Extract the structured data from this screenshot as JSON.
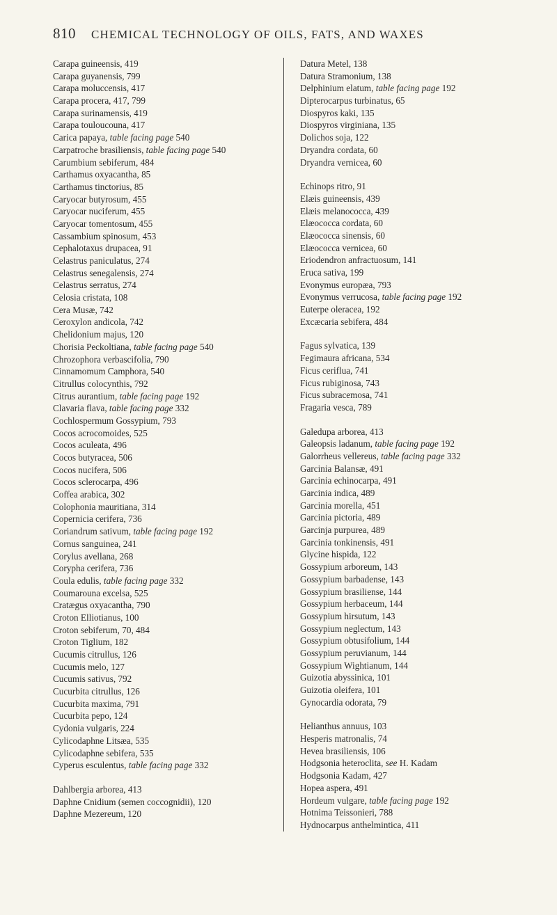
{
  "page": {
    "number": "810",
    "title": "CHEMICAL TECHNOLOGY OF OILS, FATS, AND WAXES"
  },
  "left": [
    {
      "t": "Carapa guineensis, 419"
    },
    {
      "t": "Carapa guyanensis, 799"
    },
    {
      "t": "Carapa moluccensis, 417"
    },
    {
      "t": "Carapa procera, 417, 799"
    },
    {
      "t": "Carapa surinamensis, 419"
    },
    {
      "t": "Carapa touloucouna, 417"
    },
    {
      "t": "Carica papaya, ",
      "i": "table facing page",
      "a": " 540"
    },
    {
      "t": "Carpatroche brasiliensis, ",
      "i": "table facing page",
      "a": " 540"
    },
    {
      "t": "Carumbium sebiferum, 484"
    },
    {
      "t": "Carthamus oxyacantha, 85"
    },
    {
      "t": "Carthamus tinctorius, 85"
    },
    {
      "t": "Caryocar butyrosum, 455"
    },
    {
      "t": "Caryocar nuciferum, 455"
    },
    {
      "t": "Caryocar tomentosum, 455"
    },
    {
      "t": "Cassambium spinosum, 453"
    },
    {
      "t": "Cephalotaxus drupacea, 91"
    },
    {
      "t": "Celastrus paniculatus, 274"
    },
    {
      "t": "Celastrus senegalensis, 274"
    },
    {
      "t": "Celastrus serratus, 274"
    },
    {
      "t": "Celosia cristata, 108"
    },
    {
      "t": "Cera Musæ, 742"
    },
    {
      "t": "Ceroxylon andicola, 742"
    },
    {
      "t": "Chelidonium majus, 120"
    },
    {
      "t": "Chorisia Peckoltiana, ",
      "i": "table facing page",
      "a": " 540"
    },
    {
      "t": "Chrozophora verbascifolia, 790"
    },
    {
      "t": "Cinnamomum Camphora, 540"
    },
    {
      "t": "Citrullus colocynthis, 792"
    },
    {
      "t": "Citrus aurantium, ",
      "i": "table facing page",
      "a": " 192"
    },
    {
      "t": "Clavaria flava, ",
      "i": "table facing page",
      "a": " 332"
    },
    {
      "t": "Cochlospermum Gossypium, 793"
    },
    {
      "t": "Cocos acrocomoides, 525"
    },
    {
      "t": "Cocos aculeata, 496"
    },
    {
      "t": "Cocos butyracea, 506"
    },
    {
      "t": "Cocos nucifera, 506"
    },
    {
      "t": "Cocos sclerocarpa, 496"
    },
    {
      "t": "Coffea arabica, 302"
    },
    {
      "t": "Colophonia mauritiana, 314"
    },
    {
      "t": "Copernicia cerifera, 736"
    },
    {
      "t": "Coriandrum sativum, ",
      "i": "table facing page",
      "a": " 192"
    },
    {
      "t": "Cornus sanguinea, 241"
    },
    {
      "t": "Corylus avellana, 268"
    },
    {
      "t": "Corypha cerifera, 736"
    },
    {
      "t": "Coula edulis, ",
      "i": "table facing page",
      "a": " 332"
    },
    {
      "t": "Coumarouna excelsa, 525"
    },
    {
      "t": "Cratægus oxyacantha, 790"
    },
    {
      "t": "Croton Elliotianus, 100"
    },
    {
      "t": "Croton sebiferum, 70, 484"
    },
    {
      "t": "Croton Tiglium, 182"
    },
    {
      "t": "Cucumis citrullus, 126"
    },
    {
      "t": "Cucumis melo, 127"
    },
    {
      "t": "Cucumis sativus, 792"
    },
    {
      "t": "Cucurbita citrullus, 126"
    },
    {
      "t": "Cucurbita maxima, 791"
    },
    {
      "t": "Cucurbita pepo, 124"
    },
    {
      "t": "Cydonia vulgaris, 224"
    },
    {
      "t": "Cylicodaphne Litsæa, 535"
    },
    {
      "t": "Cylicodaphne sebifera, 535"
    },
    {
      "t": "Cyperus esculentus, ",
      "i": "table facing page",
      "a": " 332"
    },
    {
      "sp": true
    },
    {
      "t": "Dahlbergia arborea, 413"
    },
    {
      "t": "Daphne Cnidium (semen coccognidii), 120"
    },
    {
      "t": "Daphne Mezereum, 120"
    }
  ],
  "right": [
    {
      "t": "Datura Metel, 138"
    },
    {
      "t": "Datura Stramonium, 138"
    },
    {
      "t": "Delphinium elatum, ",
      "i": "table facing page",
      "a": " 192"
    },
    {
      "t": "Dipterocarpus turbinatus, 65"
    },
    {
      "t": "Diospyros kaki, 135"
    },
    {
      "t": "Diospyros virginiana, 135"
    },
    {
      "t": "Dolichos soja, 122"
    },
    {
      "t": "Dryandra cordata, 60"
    },
    {
      "t": "Dryandra vernicea, 60"
    },
    {
      "sp": true
    },
    {
      "t": "Echinops ritro, 91"
    },
    {
      "t": "Elæis guineensis, 439"
    },
    {
      "t": "Elæis melanococca, 439"
    },
    {
      "t": "Elæococca cordata, 60"
    },
    {
      "t": "Elæococca sinensis, 60"
    },
    {
      "t": "Elæococca vernicea, 60"
    },
    {
      "t": "Eriodendron anfractuosum, 141"
    },
    {
      "t": "Eruca sativa, 199"
    },
    {
      "t": "Evonymus europæa, 793"
    },
    {
      "t": "Evonymus verrucosa, ",
      "i": "table facing page",
      "a": " 192"
    },
    {
      "t": "Euterpe oleracea, 192"
    },
    {
      "t": "Excæcaria sebifera, 484"
    },
    {
      "sp": true
    },
    {
      "t": "Fagus sylvatica, 139"
    },
    {
      "t": "Fegimaura africana, 534"
    },
    {
      "t": "Ficus ceriflua, 741"
    },
    {
      "t": "Ficus rubiginosa, 743"
    },
    {
      "t": "Ficus subracemosa, 741"
    },
    {
      "t": "Fragaria vesca, 789"
    },
    {
      "sp": true
    },
    {
      "t": "Galedupa arborea, 413"
    },
    {
      "t": "Galeopsis ladanum, ",
      "i": "table facing page",
      "a": " 192"
    },
    {
      "t": "Galorrheus vellereus, ",
      "i": "table facing page",
      "a": " 332"
    },
    {
      "t": "Garcinia Balansæ, 491"
    },
    {
      "t": "Garcinia echinocarpa, 491"
    },
    {
      "t": "Garcinia indica, 489"
    },
    {
      "t": "Garcinia morella, 451"
    },
    {
      "t": "Garcinia pictoria, 489"
    },
    {
      "t": "Garcinja purpurea, 489"
    },
    {
      "t": "Garcinia tonkinensis, 491"
    },
    {
      "t": "Glycine hispida, 122"
    },
    {
      "t": "Gossypium arboreum, 143"
    },
    {
      "t": "Gossypium barbadense, 143"
    },
    {
      "t": "Gossypium brasiliense, 144"
    },
    {
      "t": "Gossypium herbaceum, 144"
    },
    {
      "t": "Gossypium hirsutum, 143"
    },
    {
      "t": "Gossypium neglectum, 143"
    },
    {
      "t": "Gossypium obtusifolium, 144"
    },
    {
      "t": "Gossypium peruvianum, 144"
    },
    {
      "t": "Gossypium Wightianum, 144"
    },
    {
      "t": "Guizotia abyssinica, 101"
    },
    {
      "t": "Guizotia oleifera, 101"
    },
    {
      "t": "Gynocardia odorata, 79"
    },
    {
      "sp": true
    },
    {
      "t": "Helianthus annuus, 103"
    },
    {
      "t": "Hesperis matronalis, 74"
    },
    {
      "t": "Hevea brasiliensis, 106"
    },
    {
      "t": "Hodgsonia heteroclita, ",
      "i": "see",
      "a": " H. Kadam"
    },
    {
      "t": "Hodgsonia Kadam, 427"
    },
    {
      "t": "Hopea aspera, 491"
    },
    {
      "t": "Hordeum vulgare, ",
      "i": "table facing page",
      "a": " 192"
    },
    {
      "t": "Hotnima Teissonieri, 788"
    },
    {
      "t": "Hydnocarpus anthelmintica, 411"
    }
  ]
}
